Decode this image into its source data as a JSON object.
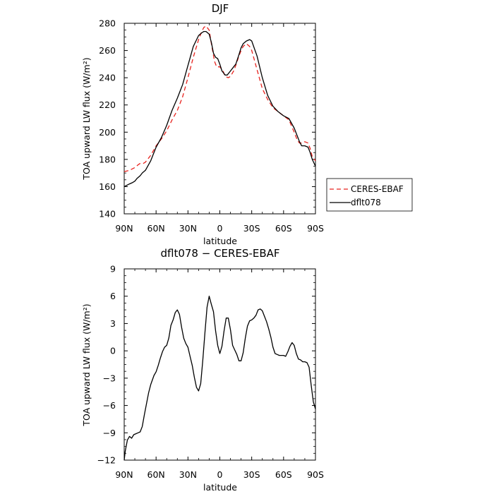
{
  "colors": {
    "ceres": "#e8231e",
    "model": "#000000"
  },
  "chart_data": [
    {
      "type": "line",
      "title": "DJF",
      "xlabel": "latitude",
      "ylabel": "TOA upward LW flux (W/m²)",
      "xticks": [
        "90N",
        "60N",
        "30N",
        "0",
        "30S",
        "60S",
        "90S"
      ],
      "xtick_values": [
        90,
        60,
        30,
        0,
        -30,
        -60,
        -90
      ],
      "yticks": [
        "140",
        "160",
        "180",
        "200",
        "220",
        "240",
        "260",
        "280"
      ],
      "xlim": [
        90,
        -90
      ],
      "ylim": [
        140,
        280
      ],
      "legend_placement": "right-outside",
      "series": [
        {
          "name": "CERES-EBAF",
          "style": "dashed",
          "color": "#e8231e",
          "x": [
            90,
            85,
            80,
            77,
            75,
            72,
            70,
            65,
            60,
            55,
            50,
            45,
            40,
            35,
            30,
            25,
            20,
            17,
            15,
            13,
            10,
            8,
            5,
            3,
            0,
            -3,
            -5,
            -8,
            -10,
            -13,
            -15,
            -18,
            -20,
            -22,
            -25,
            -28,
            -30,
            -35,
            -40,
            -45,
            -50,
            -55,
            -60,
            -65,
            -70,
            -73,
            -75,
            -77,
            -80,
            -83,
            -85,
            -87,
            -90
          ],
          "y": [
            171,
            172,
            174,
            176,
            177,
            177,
            178,
            183,
            190,
            195,
            201,
            209,
            216,
            226,
            240,
            255,
            268,
            274,
            277,
            278,
            275,
            265,
            252,
            248,
            248,
            245,
            241,
            240,
            241,
            245,
            249,
            256,
            260,
            263,
            265,
            263,
            260,
            246,
            232,
            224,
            218,
            215,
            212,
            209,
            200,
            194,
            192,
            192,
            193,
            192,
            188,
            182,
            179
          ]
        },
        {
          "name": "dflt078",
          "style": "solid",
          "color": "#000000",
          "x": [
            90,
            85,
            82,
            80,
            78,
            75,
            73,
            70,
            65,
            60,
            55,
            50,
            45,
            40,
            35,
            30,
            25,
            20,
            17,
            15,
            13,
            10,
            8,
            6,
            4,
            2,
            0,
            -2,
            -4,
            -5,
            -7,
            -10,
            -13,
            -15,
            -18,
            -20,
            -22,
            -25,
            -28,
            -30,
            -35,
            -40,
            -45,
            -50,
            -55,
            -60,
            -65,
            -70,
            -73,
            -75,
            -77,
            -80,
            -83,
            -85,
            -87,
            -90
          ],
          "y": [
            160,
            162,
            163,
            164,
            166,
            168,
            170,
            172,
            179,
            189,
            196,
            205,
            216,
            225,
            235,
            249,
            263,
            271,
            273,
            274,
            274,
            272,
            266,
            258,
            255,
            254,
            250,
            245,
            243,
            242,
            242,
            245,
            248,
            250,
            257,
            262,
            265,
            267,
            268,
            267,
            256,
            240,
            227,
            219,
            215,
            212,
            210,
            203,
            197,
            193,
            190,
            190,
            189,
            185,
            180,
            175
          ]
        }
      ]
    },
    {
      "type": "line",
      "title": "dflt078 − CERES-EBAF",
      "xlabel": "latitude",
      "ylabel": "TOA upward LW flux (W/m²)",
      "xticks": [
        "90N",
        "60N",
        "30N",
        "0",
        "30S",
        "60S",
        "90S"
      ],
      "xtick_values": [
        90,
        60,
        30,
        0,
        -30,
        -60,
        -90
      ],
      "yticks": [
        "−12",
        "−9",
        "−6",
        "−3",
        "0",
        "3",
        "6",
        "9"
      ],
      "ytick_values": [
        -12,
        -9,
        -6,
        -3,
        0,
        3,
        6,
        9
      ],
      "xlim": [
        90,
        -90
      ],
      "ylim": [
        -12,
        9
      ],
      "series": [
        {
          "style": "solid",
          "color": "#000000",
          "x": [
            90,
            89,
            87,
            85,
            83,
            81,
            79,
            77,
            75,
            73,
            71,
            69,
            67,
            65,
            62,
            60,
            58,
            56,
            54,
            52,
            50,
            48,
            46,
            44,
            42,
            40,
            38,
            36,
            34,
            32,
            30,
            28,
            26,
            24,
            22,
            20,
            18,
            16,
            14,
            12,
            10,
            8,
            6,
            4,
            2,
            0,
            -2,
            -4,
            -6,
            -8,
            -10,
            -12,
            -14,
            -16,
            -18,
            -20,
            -22,
            -24,
            -26,
            -28,
            -30,
            -32,
            -34,
            -36,
            -38,
            -40,
            -42,
            -44,
            -46,
            -48,
            -50,
            -52,
            -54,
            -56,
            -58,
            -60,
            -62,
            -64,
            -66,
            -68,
            -70,
            -72,
            -74,
            -76,
            -78,
            -80,
            -82,
            -84,
            -86,
            -88,
            -90
          ],
          "y": [
            -12,
            -11,
            -9.8,
            -9.4,
            -9.6,
            -9.2,
            -9.1,
            -9.0,
            -8.9,
            -8.3,
            -7.0,
            -5.8,
            -4.6,
            -3.7,
            -2.7,
            -2.3,
            -1.6,
            -0.8,
            -0.1,
            0.4,
            0.6,
            1.4,
            2.8,
            3.4,
            4.2,
            4.5,
            4.0,
            2.6,
            1.4,
            0.8,
            0.4,
            -0.6,
            -1.6,
            -2.9,
            -4.0,
            -4.4,
            -3.6,
            -1.0,
            2.0,
            4.8,
            6.0,
            5.1,
            4.3,
            2.2,
            0.6,
            -0.3,
            0.5,
            2.2,
            3.6,
            3.6,
            2.3,
            0.6,
            0.1,
            -0.4,
            -1.1,
            -1.1,
            -0.2,
            1.4,
            2.7,
            3.3,
            3.4,
            3.6,
            3.9,
            4.5,
            4.6,
            4.4,
            3.8,
            3.2,
            2.4,
            1.5,
            0.4,
            -0.3,
            -0.4,
            -0.5,
            -0.5,
            -0.5,
            -0.6,
            -0.1,
            0.5,
            0.9,
            0.6,
            -0.3,
            -0.9,
            -1.0,
            -1.2,
            -1.2,
            -1.3,
            -1.8,
            -3.8,
            -5.6,
            -6.4
          ]
        }
      ]
    }
  ]
}
